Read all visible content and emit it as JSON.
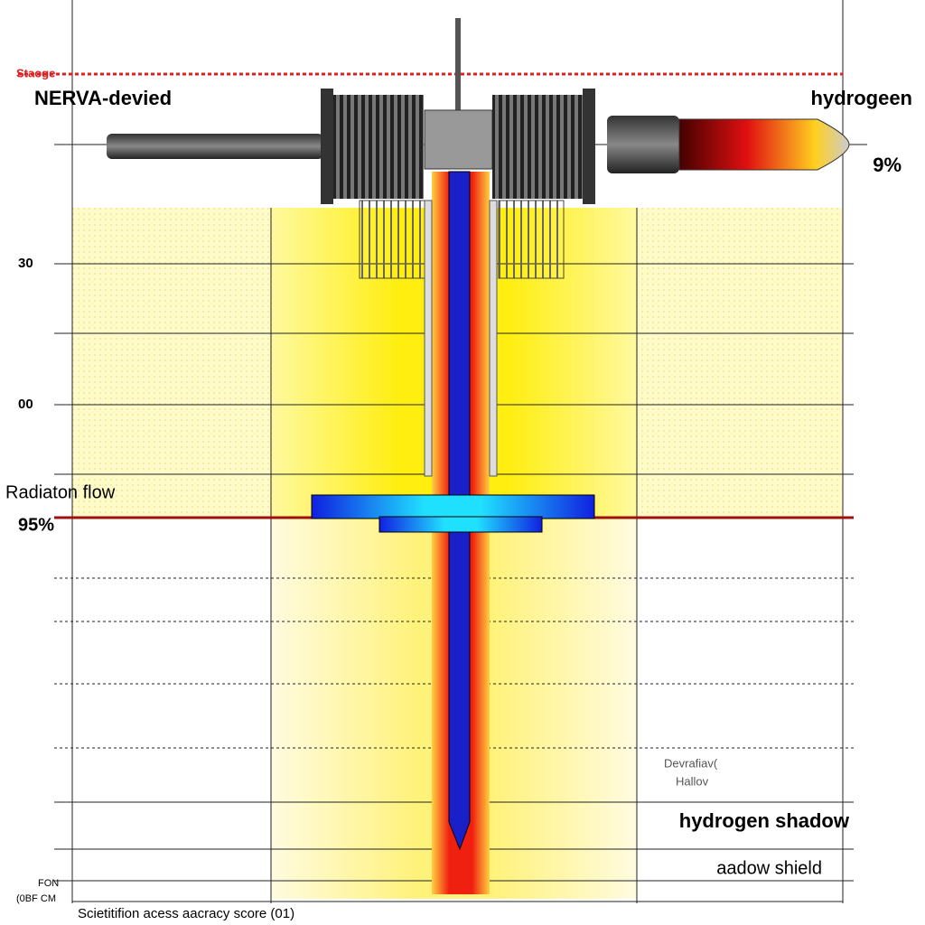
{
  "header": {
    "stage_label": "Staoge",
    "left_label": "NERVA-devied",
    "right_label": "hydrogeen",
    "right_percent": "9%"
  },
  "axis": {
    "tick_labels": [
      "30",
      "00"
    ]
  },
  "flow": {
    "label": "Radiaton flow",
    "percent": "95%"
  },
  "annotations": {
    "small_note_1": "Devrafiav(",
    "small_note_2": "Hallov",
    "shadow_label": "hydrogen shadow",
    "shield_label": "aadow shield",
    "corner_1": "FON",
    "corner_2": "(0BF CM"
  },
  "footer": {
    "caption": "Scietitifion acess aacracy score (01)"
  }
}
